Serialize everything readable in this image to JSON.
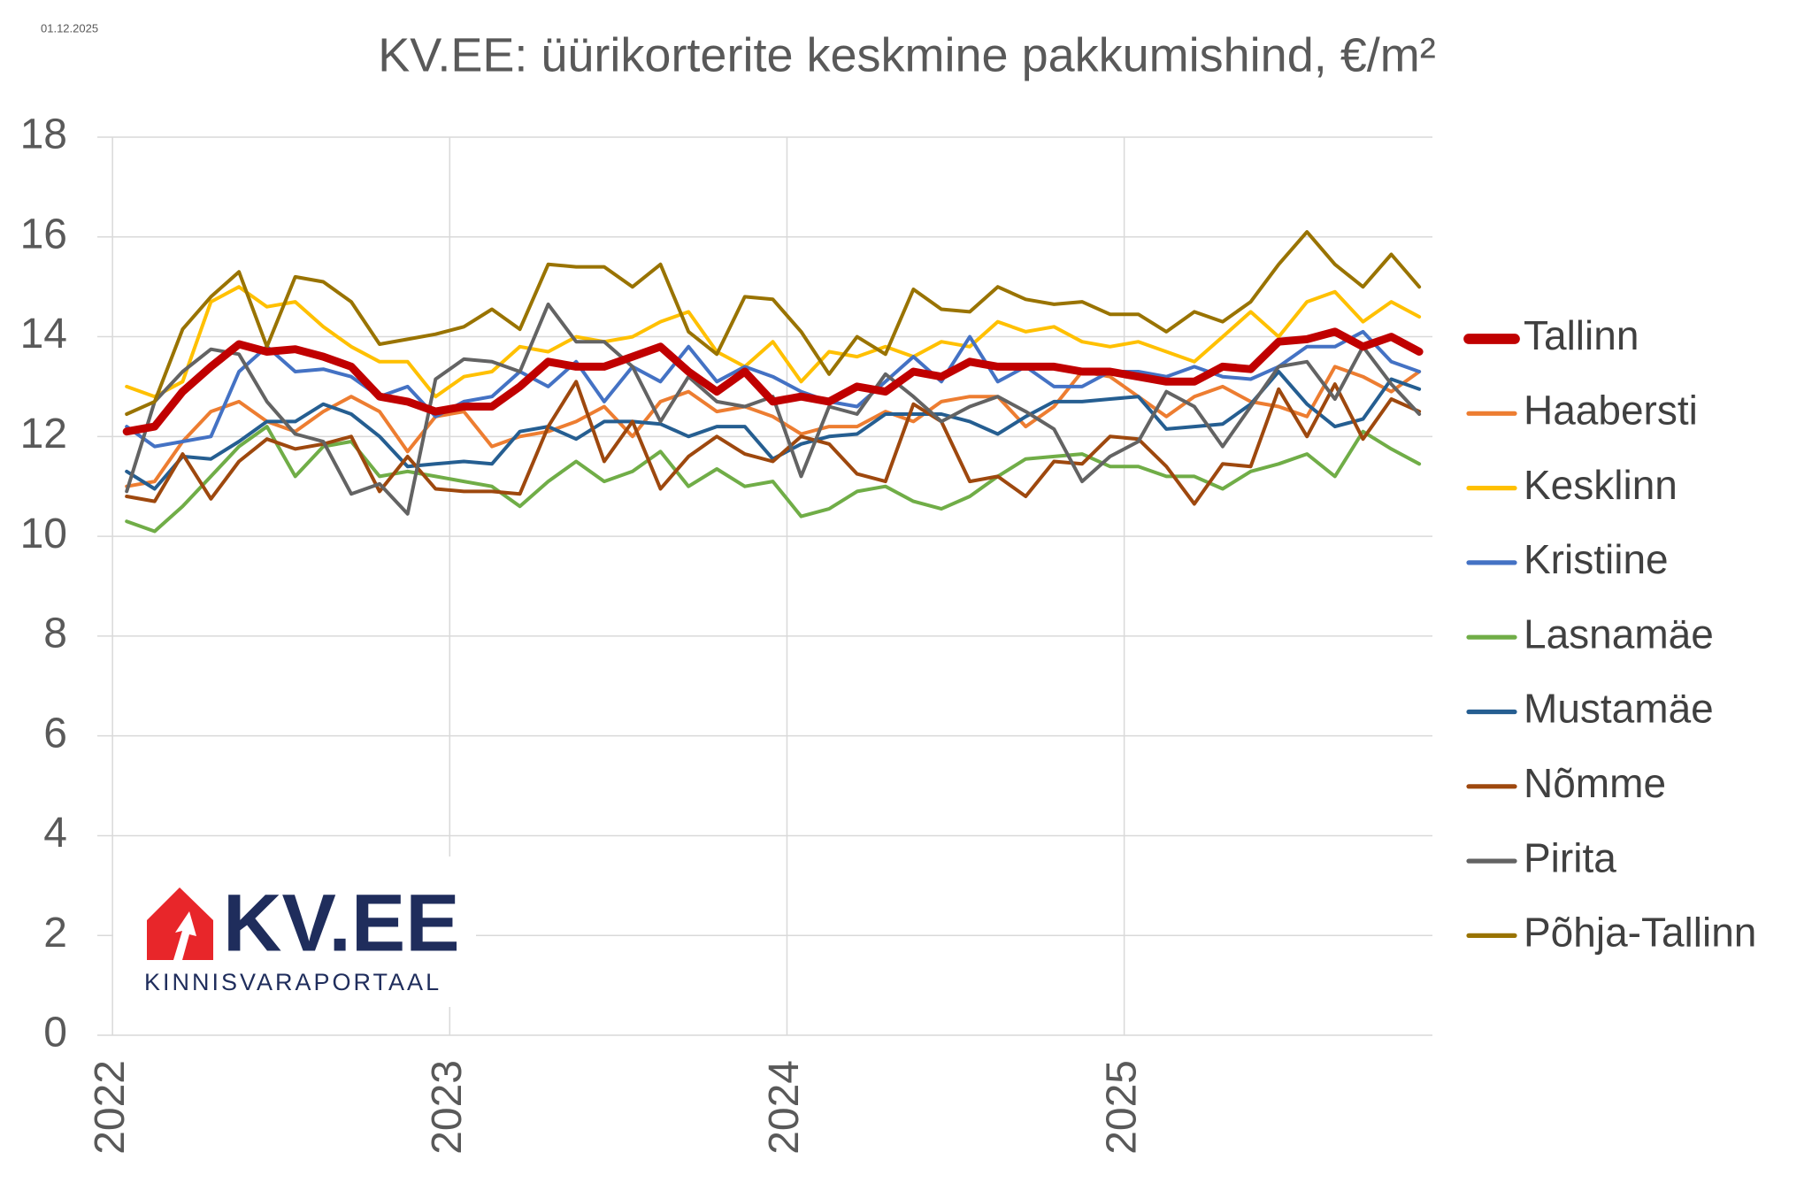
{
  "date_stamp": "01.12.2025",
  "logo": {
    "name": "KV.EE",
    "tagline": "KINNISVARAPORTAAL"
  },
  "chart_data": {
    "type": "line",
    "title": "KV.EE: üürikorterite keskmine pakkumishind, €/m²",
    "x": [
      2022.042,
      2022.125,
      2022.208,
      2022.292,
      2022.375,
      2022.458,
      2022.542,
      2022.625,
      2022.708,
      2022.792,
      2022.875,
      2022.958,
      2023.042,
      2023.125,
      2023.208,
      2023.292,
      2023.375,
      2023.458,
      2023.542,
      2023.625,
      2023.708,
      2023.792,
      2023.875,
      2023.958,
      2024.042,
      2024.125,
      2024.208,
      2024.292,
      2024.375,
      2024.458,
      2024.542,
      2024.625,
      2024.708,
      2024.792,
      2024.875,
      2024.958,
      2025.042,
      2025.125,
      2025.208,
      2025.292,
      2025.375,
      2025.458,
      2025.542,
      2025.625,
      2025.708,
      2025.792,
      2025.875
    ],
    "xlim": [
      2021.955,
      2025.914
    ],
    "xticks": [
      2022,
      2023,
      2024,
      2025
    ],
    "ylim": [
      0,
      18
    ],
    "yticks": [
      0,
      2,
      4,
      6,
      8,
      10,
      12,
      14,
      16,
      18
    ],
    "grid": true,
    "legend": "right",
    "series": [
      {
        "name": "Tallinn",
        "color": "#c00000",
        "width": 9,
        "values": [
          12.1,
          12.2,
          12.9,
          13.4,
          13.85,
          13.7,
          13.75,
          13.6,
          13.4,
          12.8,
          12.7,
          12.5,
          12.6,
          12.6,
          13.0,
          13.5,
          13.4,
          13.4,
          13.6,
          13.8,
          13.3,
          12.9,
          13.3,
          12.7,
          12.8,
          12.7,
          13.0,
          12.9,
          13.3,
          13.2,
          13.5,
          13.4,
          13.4,
          13.4,
          13.3,
          13.3,
          13.2,
          13.1,
          13.1,
          13.4,
          13.35,
          13.9,
          13.95,
          14.1,
          13.8,
          14.0,
          13.7
        ]
      },
      {
        "name": "Haabersti",
        "color": "#ed7d31",
        "width": 4,
        "values": [
          11.0,
          11.1,
          11.9,
          12.5,
          12.7,
          12.3,
          12.1,
          12.5,
          12.8,
          12.5,
          11.7,
          12.4,
          12.5,
          11.8,
          12.0,
          12.1,
          12.3,
          12.6,
          12.0,
          12.7,
          12.9,
          12.5,
          12.6,
          12.4,
          12.05,
          12.2,
          12.2,
          12.5,
          12.3,
          12.7,
          12.8,
          12.8,
          12.2,
          12.6,
          13.3,
          13.2,
          12.8,
          12.4,
          12.8,
          13.0,
          12.7,
          12.6,
          12.4,
          13.4,
          13.2,
          12.9,
          13.3
        ]
      },
      {
        "name": "Kesklinn",
        "color": "#ffc000",
        "width": 4,
        "values": [
          13.0,
          12.8,
          13.1,
          14.7,
          15.0,
          14.6,
          14.7,
          14.2,
          13.8,
          13.5,
          13.5,
          12.8,
          13.2,
          13.3,
          13.8,
          13.7,
          14.0,
          13.9,
          14.0,
          14.3,
          14.5,
          13.7,
          13.4,
          13.9,
          13.1,
          13.7,
          13.6,
          13.8,
          13.6,
          13.9,
          13.8,
          14.3,
          14.1,
          14.2,
          13.9,
          13.8,
          13.9,
          13.7,
          13.5,
          14.0,
          14.5,
          14.0,
          14.7,
          14.9,
          14.3,
          14.7,
          14.4
        ]
      },
      {
        "name": "Kristiine",
        "color": "#4472c4",
        "width": 4,
        "values": [
          12.2,
          11.8,
          11.9,
          12.0,
          13.3,
          13.8,
          13.3,
          13.35,
          13.2,
          12.8,
          13.0,
          12.4,
          12.7,
          12.8,
          13.3,
          13.0,
          13.5,
          12.7,
          13.4,
          13.1,
          13.8,
          13.1,
          13.4,
          13.2,
          12.9,
          12.7,
          12.6,
          13.1,
          13.6,
          13.1,
          14.0,
          13.1,
          13.4,
          13.0,
          13.0,
          13.3,
          13.3,
          13.2,
          13.4,
          13.2,
          13.15,
          13.4,
          13.8,
          13.8,
          14.1,
          13.5,
          13.3
        ]
      },
      {
        "name": "Lasnamäe",
        "color": "#70ad47",
        "width": 4,
        "values": [
          10.3,
          10.1,
          10.6,
          11.2,
          11.8,
          12.2,
          11.2,
          11.8,
          11.9,
          11.2,
          11.3,
          11.2,
          11.1,
          11.0,
          10.6,
          11.1,
          11.5,
          11.1,
          11.3,
          11.7,
          11.0,
          11.35,
          11.0,
          11.1,
          10.4,
          10.55,
          10.9,
          11.0,
          10.7,
          10.55,
          10.8,
          11.2,
          11.55,
          11.6,
          11.65,
          11.4,
          11.4,
          11.2,
          11.2,
          10.95,
          11.3,
          11.45,
          11.65,
          11.2,
          12.1,
          11.75,
          11.45
        ]
      },
      {
        "name": "Mustamäe",
        "color": "#255e91",
        "width": 4,
        "values": [
          11.3,
          10.95,
          11.6,
          11.55,
          11.9,
          12.3,
          12.3,
          12.65,
          12.45,
          12.0,
          11.4,
          11.45,
          11.5,
          11.45,
          12.1,
          12.2,
          11.95,
          12.3,
          12.3,
          12.25,
          12.0,
          12.2,
          12.2,
          11.55,
          11.85,
          12.0,
          12.05,
          12.45,
          12.45,
          12.45,
          12.3,
          12.05,
          12.4,
          12.7,
          12.7,
          12.75,
          12.8,
          12.15,
          12.2,
          12.25,
          12.65,
          13.3,
          12.65,
          12.2,
          12.35,
          13.15,
          12.95
        ]
      },
      {
        "name": "Nõmme",
        "color": "#9e480e",
        "width": 4,
        "values": [
          10.8,
          10.7,
          11.65,
          10.75,
          11.5,
          11.95,
          11.75,
          11.85,
          12.0,
          10.9,
          11.6,
          10.95,
          10.9,
          10.9,
          10.85,
          12.2,
          13.1,
          11.5,
          12.3,
          10.95,
          11.6,
          12.0,
          11.65,
          11.5,
          12.0,
          11.85,
          11.25,
          11.1,
          12.65,
          12.3,
          11.1,
          11.2,
          10.8,
          11.5,
          11.45,
          12.0,
          11.95,
          11.4,
          10.65,
          11.45,
          11.4,
          12.95,
          12.0,
          13.05,
          11.95,
          12.75,
          12.5
        ]
      },
      {
        "name": "Pirita",
        "color": "#636363",
        "width": 4,
        "values": [
          10.9,
          12.7,
          13.3,
          13.75,
          13.65,
          12.7,
          12.05,
          11.9,
          10.85,
          11.05,
          10.45,
          13.15,
          13.55,
          13.5,
          13.3,
          14.65,
          13.9,
          13.9,
          13.4,
          12.3,
          13.2,
          12.7,
          12.6,
          12.8,
          11.2,
          12.6,
          12.45,
          13.25,
          12.8,
          12.3,
          12.6,
          12.8,
          12.5,
          12.15,
          11.1,
          11.6,
          11.9,
          12.9,
          12.6,
          11.8,
          12.6,
          13.4,
          13.5,
          12.75,
          13.8,
          13.05,
          12.45
        ]
      },
      {
        "name": "Põhja-Tallinn",
        "color": "#997300",
        "width": 4,
        "values": [
          12.45,
          12.7,
          14.15,
          14.8,
          15.3,
          13.8,
          15.2,
          15.1,
          14.7,
          13.85,
          13.95,
          14.05,
          14.2,
          14.55,
          14.15,
          15.45,
          15.4,
          15.4,
          15.0,
          15.45,
          14.1,
          13.65,
          14.8,
          14.75,
          14.1,
          13.25,
          14.0,
          13.65,
          14.95,
          14.55,
          14.5,
          15.0,
          14.75,
          14.65,
          14.7,
          14.45,
          14.45,
          14.1,
          14.5,
          14.3,
          14.7,
          15.45,
          16.1,
          15.45,
          15.0,
          15.65,
          15.0
        ]
      }
    ]
  }
}
